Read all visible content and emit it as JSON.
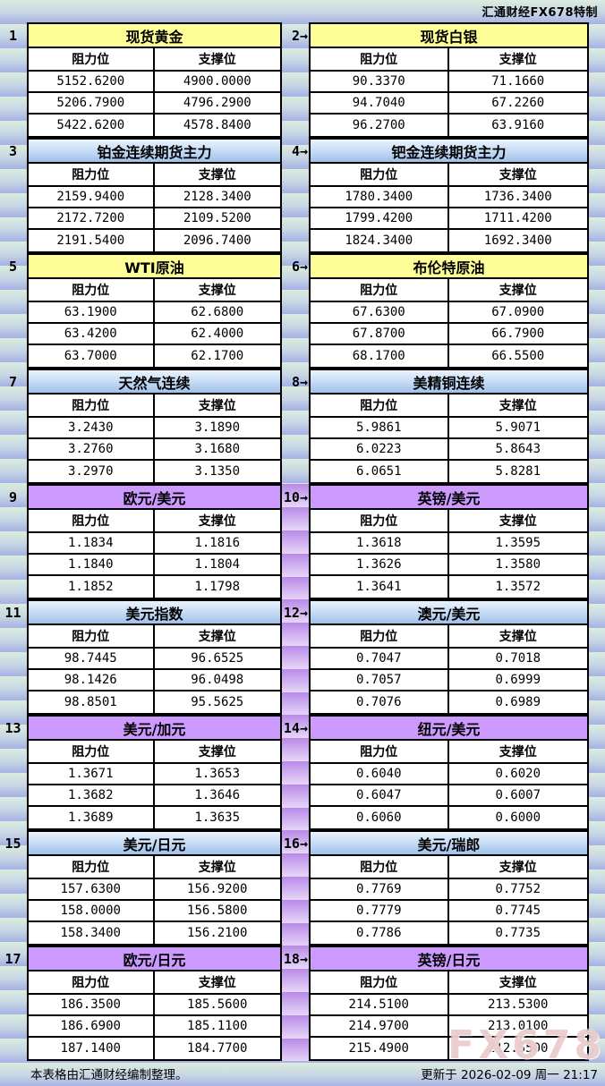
{
  "header": {
    "brand": "汇通财经FX678特制"
  },
  "labels": {
    "resistance": "阻力位",
    "support": "支撑位"
  },
  "colors": {
    "title_yellow": "#ffff99",
    "title_blue_top": "#eaf3fd",
    "title_blue_bottom": "#9fc0ea",
    "title_purple": "#cc99ff",
    "mid_purple_top": "#b98ae9",
    "mid_purple_bottom": "#e6d7f8",
    "band_green": "#dcecdd",
    "band_periwinkle": "#a4b1e5",
    "watermark_pink": "#e0b0b0"
  },
  "sections": [
    {
      "left_num": "1",
      "right_num": "2→",
      "mid": "plain",
      "left": {
        "title": "现货黄金",
        "theme": "yellow",
        "resistance": [
          "5152.6200",
          "5206.7900",
          "5422.6200"
        ],
        "support": [
          "4900.0000",
          "4796.2900",
          "4578.8400"
        ]
      },
      "right": {
        "title": "现货白银",
        "theme": "yellow",
        "resistance": [
          "90.3370",
          "94.7040",
          "96.2700"
        ],
        "support": [
          "71.1660",
          "67.2260",
          "63.9160"
        ]
      }
    },
    {
      "left_num": "3",
      "right_num": "4→",
      "mid": "plain",
      "left": {
        "title": "铂金连续期货主力",
        "theme": "blue",
        "resistance": [
          "2159.9400",
          "2172.7200",
          "2191.5400"
        ],
        "support": [
          "2128.3400",
          "2109.5200",
          "2096.7400"
        ]
      },
      "right": {
        "title": "钯金连续期货主力",
        "theme": "blue",
        "resistance": [
          "1780.3400",
          "1799.4200",
          "1824.3400"
        ],
        "support": [
          "1736.3400",
          "1711.4200",
          "1692.3400"
        ]
      }
    },
    {
      "left_num": "5",
      "right_num": "6→",
      "mid": "plain",
      "left": {
        "title": "WTI原油",
        "theme": "yellow",
        "resistance": [
          "63.1900",
          "63.4200",
          "63.7000"
        ],
        "support": [
          "62.6800",
          "62.4000",
          "62.1700"
        ]
      },
      "right": {
        "title": "布伦特原油",
        "theme": "yellow",
        "resistance": [
          "67.6300",
          "67.8700",
          "68.1700"
        ],
        "support": [
          "67.0900",
          "66.7900",
          "66.5500"
        ]
      }
    },
    {
      "left_num": "7",
      "right_num": "8→",
      "mid": "plain",
      "left": {
        "title": "天然气连续",
        "theme": "blue",
        "resistance": [
          "3.2430",
          "3.2760",
          "3.2970"
        ],
        "support": [
          "3.1890",
          "3.1680",
          "3.1350"
        ]
      },
      "right": {
        "title": "美精铜连续",
        "theme": "blue",
        "resistance": [
          "5.9861",
          "6.0223",
          "6.0651"
        ],
        "support": [
          "5.9071",
          "5.8643",
          "5.8281"
        ]
      }
    },
    {
      "left_num": "9",
      "right_num": "10→",
      "mid": "purple",
      "left": {
        "title": "欧元/美元",
        "theme": "purple",
        "resistance": [
          "1.1834",
          "1.1840",
          "1.1852"
        ],
        "support": [
          "1.1816",
          "1.1804",
          "1.1798"
        ]
      },
      "right": {
        "title": "英镑/美元",
        "theme": "purple",
        "resistance": [
          "1.3618",
          "1.3626",
          "1.3641"
        ],
        "support": [
          "1.3595",
          "1.3580",
          "1.3572"
        ]
      }
    },
    {
      "left_num": "11",
      "right_num": "12→",
      "mid": "purple",
      "left": {
        "title": "美元指数",
        "theme": "blue",
        "resistance": [
          "98.7445",
          "98.1426",
          "98.8501"
        ],
        "support": [
          "96.6525",
          "96.0498",
          "95.5625"
        ]
      },
      "right": {
        "title": "澳元/美元",
        "theme": "blue",
        "resistance": [
          "0.7047",
          "0.7057",
          "0.7076"
        ],
        "support": [
          "0.7018",
          "0.6999",
          "0.6989"
        ]
      }
    },
    {
      "left_num": "13",
      "right_num": "14→",
      "mid": "purple",
      "left": {
        "title": "美元/加元",
        "theme": "purple",
        "resistance": [
          "1.3671",
          "1.3682",
          "1.3689"
        ],
        "support": [
          "1.3653",
          "1.3646",
          "1.3635"
        ]
      },
      "right": {
        "title": "纽元/美元",
        "theme": "purple",
        "resistance": [
          "0.6040",
          "0.6047",
          "0.6060"
        ],
        "support": [
          "0.6020",
          "0.6007",
          "0.6000"
        ]
      }
    },
    {
      "left_num": "15",
      "right_num": "16→",
      "mid": "purple",
      "left": {
        "title": "美元/日元",
        "theme": "blue",
        "resistance": [
          "157.6300",
          "158.0000",
          "158.3400"
        ],
        "support": [
          "156.9200",
          "156.5800",
          "156.2100"
        ]
      },
      "right": {
        "title": "美元/瑞郎",
        "theme": "blue",
        "resistance": [
          "0.7769",
          "0.7779",
          "0.7786"
        ],
        "support": [
          "0.7752",
          "0.7745",
          "0.7735"
        ]
      }
    },
    {
      "left_num": "17",
      "right_num": "18→",
      "mid": "purple",
      "left": {
        "title": "欧元/日元",
        "theme": "purple",
        "resistance": [
          "186.3500",
          "186.6900",
          "187.1400"
        ],
        "support": [
          "185.5600",
          "185.1100",
          "184.7700"
        ]
      },
      "right": {
        "title": "英镑/日元",
        "theme": "purple",
        "resistance": [
          "214.5100",
          "214.9700",
          "215.4900"
        ],
        "support": [
          "213.5300",
          "213.0100",
          "212.5500"
        ]
      }
    }
  ],
  "footer": {
    "note": "本表格由汇通财经编制整理。",
    "updated": "更新于 2026-02-09 周一 21:17",
    "watermark": "FX678"
  }
}
